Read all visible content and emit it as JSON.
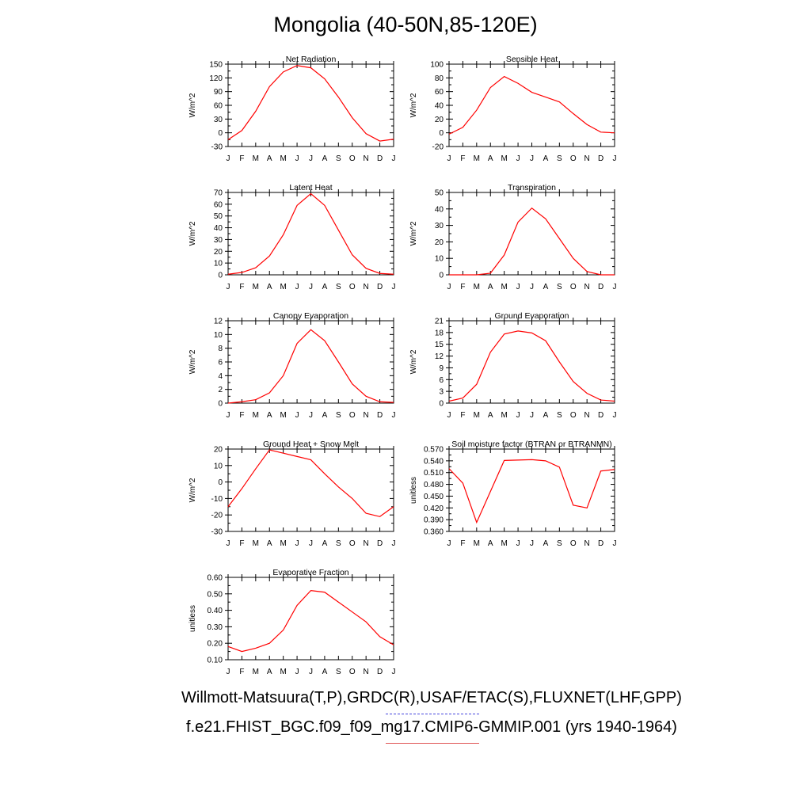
{
  "title": "Mongolia (40-50N,85-120E)",
  "footer": {
    "line1": "Willmott-Matsuura(T,P),GRDC(R),USAF/ETAC(S),FLUXNET(LHF,GPP)",
    "line2": "f.e21.FHIST_BGC.f09_f09_mg17.CMIP6-GMMIP.001 (yrs 1940-1964)",
    "line1_color": "#4444dd",
    "line2_color": "#e05555"
  },
  "chart_data": [
    {
      "type": "line",
      "title": "Net Radiation",
      "ylabel": "W/m^2",
      "x": [
        "J",
        "F",
        "M",
        "A",
        "M",
        "J",
        "J",
        "A",
        "S",
        "O",
        "N",
        "D",
        "J"
      ],
      "ylim": [
        -30,
        150
      ],
      "yticks": [
        "-30",
        "0",
        "30",
        "60",
        "90",
        "120",
        "150"
      ],
      "series": [
        {
          "color": "#ff0000",
          "values": [
            -15,
            5,
            47,
            101,
            133,
            147,
            142,
            118,
            78,
            33,
            -2,
            -18,
            -14
          ]
        }
      ]
    },
    {
      "type": "line",
      "title": "Sensible Heat",
      "ylabel": "W/m^2",
      "x": [
        "J",
        "F",
        "M",
        "A",
        "M",
        "J",
        "J",
        "A",
        "S",
        "O",
        "N",
        "D",
        "J"
      ],
      "ylim": [
        -20,
        100
      ],
      "yticks": [
        "-20",
        "0",
        "20",
        "40",
        "60",
        "80",
        "100"
      ],
      "series": [
        {
          "color": "#ff0000",
          "values": [
            -2,
            8,
            33,
            66,
            82,
            72,
            59,
            52,
            45,
            28,
            12,
            1,
            0
          ]
        }
      ]
    },
    {
      "type": "line",
      "title": "Latent Heat",
      "ylabel": "W/m^2",
      "x": [
        "J",
        "F",
        "M",
        "A",
        "M",
        "J",
        "J",
        "A",
        "S",
        "O",
        "N",
        "D",
        "J"
      ],
      "ylim": [
        0,
        70
      ],
      "yticks": [
        "0",
        "10",
        "20",
        "30",
        "40",
        "50",
        "60",
        "70"
      ],
      "series": [
        {
          "color": "#ff0000",
          "values": [
            0.5,
            2,
            6,
            16,
            34,
            59,
            69,
            59,
            38,
            17,
            5.5,
            1.2,
            0.5
          ]
        }
      ]
    },
    {
      "type": "line",
      "title": "Transpiration",
      "ylabel": "W/m^2",
      "x": [
        "J",
        "F",
        "M",
        "A",
        "M",
        "J",
        "J",
        "A",
        "S",
        "O",
        "N",
        "D",
        "J"
      ],
      "ylim": [
        0,
        50
      ],
      "yticks": [
        "0",
        "10",
        "20",
        "30",
        "40",
        "50"
      ],
      "series": [
        {
          "color": "#ff0000",
          "values": [
            0,
            0,
            0,
            1,
            12,
            32,
            40.5,
            34,
            22,
            10,
            2,
            0,
            0
          ]
        }
      ]
    },
    {
      "type": "line",
      "title": "Canopy Evaporation",
      "ylabel": "W/m^2",
      "x": [
        "J",
        "F",
        "M",
        "A",
        "M",
        "J",
        "J",
        "A",
        "S",
        "O",
        "N",
        "D",
        "J"
      ],
      "ylim": [
        0,
        12
      ],
      "yticks": [
        "0",
        "2",
        "4",
        "6",
        "8",
        "10",
        "12"
      ],
      "series": [
        {
          "color": "#ff0000",
          "values": [
            0,
            0.2,
            0.5,
            1.5,
            4,
            8.7,
            10.7,
            9.1,
            6,
            2.8,
            1,
            0.2,
            0.1
          ]
        }
      ]
    },
    {
      "type": "line",
      "title": "Ground Evaporation",
      "ylabel": "W/m^2",
      "x": [
        "J",
        "F",
        "M",
        "A",
        "M",
        "J",
        "J",
        "A",
        "S",
        "O",
        "N",
        "D",
        "J"
      ],
      "ylim": [
        0,
        21
      ],
      "yticks": [
        "0",
        "3",
        "6",
        "9",
        "12",
        "15",
        "18",
        "21"
      ],
      "series": [
        {
          "color": "#ff0000",
          "values": [
            0.5,
            1.3,
            4.8,
            13,
            17.6,
            18.4,
            17.9,
            15.9,
            10.5,
            5.5,
            2.5,
            0.8,
            0.5
          ]
        }
      ]
    },
    {
      "type": "line",
      "title": "Ground Heat + Snow Melt",
      "ylabel": "W/m^2",
      "x": [
        "J",
        "F",
        "M",
        "A",
        "M",
        "J",
        "J",
        "A",
        "S",
        "O",
        "N",
        "D",
        "J"
      ],
      "ylim": [
        -30,
        20
      ],
      "yticks": [
        "-30",
        "-20",
        "-10",
        "0",
        "10",
        "20"
      ],
      "series": [
        {
          "color": "#ff0000",
          "values": [
            -15,
            -4,
            8,
            19.5,
            17.5,
            15.5,
            13.5,
            5,
            -3,
            -10,
            -19,
            -21,
            -15
          ]
        }
      ]
    },
    {
      "type": "line",
      "title": "Soil moisture factor (BTRAN or BTRANMN)",
      "ylabel": "unitless",
      "x": [
        "J",
        "F",
        "M",
        "A",
        "M",
        "J",
        "J",
        "A",
        "S",
        "O",
        "N",
        "D",
        "J"
      ],
      "ylim": [
        0.36,
        0.57
      ],
      "yticks": [
        "0.360",
        "0.390",
        "0.420",
        "0.450",
        "0.480",
        "0.510",
        "0.540",
        "0.570"
      ],
      "series": [
        {
          "color": "#ff0000",
          "values": [
            0.52,
            0.483,
            0.383,
            0.462,
            0.541,
            0.542,
            0.543,
            0.54,
            0.524,
            0.427,
            0.42,
            0.514,
            0.518
          ]
        }
      ]
    },
    {
      "type": "line",
      "title": "Evaporative Fraction",
      "ylabel": "unitless",
      "x": [
        "J",
        "F",
        "M",
        "A",
        "M",
        "J",
        "J",
        "A",
        "S",
        "O",
        "N",
        "D",
        "J"
      ],
      "ylim": [
        0.1,
        0.6
      ],
      "yticks": [
        "0.10",
        "0.20",
        "0.30",
        "0.40",
        "0.50",
        "0.60"
      ],
      "series": [
        {
          "color": "#ff0000",
          "values": [
            0.18,
            0.15,
            0.17,
            0.2,
            0.28,
            0.43,
            0.52,
            0.51,
            0.45,
            0.39,
            0.33,
            0.24,
            0.19
          ]
        }
      ]
    }
  ]
}
